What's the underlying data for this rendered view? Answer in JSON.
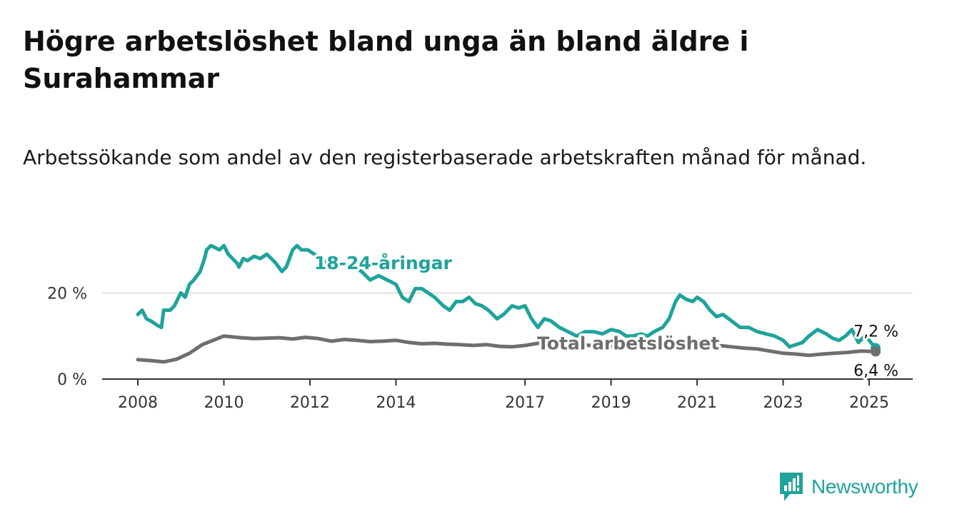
{
  "header": {
    "title": "Högre arbetslöshet bland unga än bland äldre i Surahammar",
    "subtitle": "Arbetssökande som andel av den registerbaserade arbetskraften månad för månad."
  },
  "brand": {
    "name": "Newsworthy",
    "icon": "newsworthy-logo-icon",
    "color": "#1fa39b"
  },
  "chart_data": {
    "type": "line",
    "ylim": [
      0,
      30
    ],
    "xlim": [
      2008,
      2025.25
    ],
    "yticks": [
      {
        "value": 0,
        "label": "0 %"
      },
      {
        "value": 20,
        "label": "20 %"
      }
    ],
    "xticks": [
      {
        "value": 2008,
        "label": "2008"
      },
      {
        "value": 2010,
        "label": "2010"
      },
      {
        "value": 2012,
        "label": "2012"
      },
      {
        "value": 2014,
        "label": "2014"
      },
      {
        "value": 2017,
        "label": "2017"
      },
      {
        "value": 2019,
        "label": "2019"
      },
      {
        "value": 2021,
        "label": "2021"
      },
      {
        "value": 2023,
        "label": "2023"
      },
      {
        "value": 2025,
        "label": "2025"
      }
    ],
    "grid": "horizontal",
    "series": [
      {
        "name": "18-24-åringar",
        "color": "#1fa39b",
        "end_label": "7,2 %",
        "x": [
          2008.0,
          2008.1,
          2008.2,
          2008.3,
          2008.45,
          2008.55,
          2008.6,
          2008.75,
          2008.85,
          2009.0,
          2009.1,
          2009.2,
          2009.3,
          2009.45,
          2009.55,
          2009.6,
          2009.7,
          2009.8,
          2009.9,
          2010.0,
          2010.1,
          2010.2,
          2010.3,
          2010.35,
          2010.45,
          2010.55,
          2010.7,
          2010.85,
          2011.0,
          2011.2,
          2011.35,
          2011.45,
          2011.6,
          2011.7,
          2011.8,
          2011.95,
          2012.1,
          2012.25,
          2012.4,
          2012.6,
          2012.8,
          2013.0,
          2013.2,
          2013.4,
          2013.6,
          2013.8,
          2014.0,
          2014.15,
          2014.3,
          2014.45,
          2014.6,
          2014.75,
          2014.9,
          2015.0,
          2015.1,
          2015.25,
          2015.4,
          2015.55,
          2015.7,
          2015.85,
          2016.0,
          2016.15,
          2016.35,
          2016.5,
          2016.7,
          2016.85,
          2017.0,
          2017.15,
          2017.3,
          2017.45,
          2017.6,
          2017.8,
          2018.0,
          2018.2,
          2018.4,
          2018.6,
          2018.8,
          2019.0,
          2019.2,
          2019.35,
          2019.5,
          2019.7,
          2019.85,
          2020.0,
          2020.2,
          2020.35,
          2020.5,
          2020.6,
          2020.75,
          2020.9,
          2021.0,
          2021.15,
          2021.3,
          2021.45,
          2021.6,
          2021.8,
          2022.0,
          2022.2,
          2022.4,
          2022.6,
          2022.8,
          2023.0,
          2023.15,
          2023.3,
          2023.45,
          2023.6,
          2023.8,
          2024.0,
          2024.15,
          2024.3,
          2024.45,
          2024.6,
          2024.75,
          2024.9,
          2025.0,
          2025.15
        ],
        "y": [
          15,
          16,
          14,
          13.5,
          12.5,
          12,
          16,
          16,
          17,
          20,
          19,
          22,
          23,
          25,
          28,
          30,
          31,
          30.5,
          30,
          31,
          29,
          28,
          27,
          26,
          28,
          27.5,
          28.5,
          28,
          29,
          27,
          25,
          26,
          30,
          31,
          30,
          30,
          29,
          28,
          27,
          26,
          27,
          26,
          25,
          23,
          24,
          23,
          22,
          19,
          18,
          21,
          21,
          20,
          19,
          18,
          17,
          16,
          18,
          18,
          19,
          17.5,
          17,
          16,
          14,
          15,
          17,
          16.5,
          17,
          14,
          12,
          14,
          13.5,
          12,
          11,
          10,
          11,
          11,
          10.5,
          11.5,
          11,
          10,
          10,
          10.5,
          10,
          11,
          12,
          14,
          18,
          19.5,
          18.5,
          18,
          19,
          18,
          16,
          14.5,
          15,
          13.5,
          12,
          12,
          11,
          10.5,
          10,
          9,
          7.5,
          8,
          8.5,
          10,
          11.5,
          10.5,
          9.5,
          9,
          10,
          11.5,
          8.5,
          10,
          9,
          7.2
        ]
      },
      {
        "name": "Total arbetslöshet",
        "color": "#6e6e6e",
        "end_label": "6,4 %",
        "x": [
          2008.0,
          2008.3,
          2008.6,
          2008.9,
          2009.2,
          2009.5,
          2009.8,
          2010.0,
          2010.2,
          2010.4,
          2010.7,
          2011.0,
          2011.3,
          2011.6,
          2011.9,
          2012.2,
          2012.5,
          2012.8,
          2013.1,
          2013.4,
          2013.7,
          2014.0,
          2014.3,
          2014.6,
          2014.9,
          2015.2,
          2015.5,
          2015.8,
          2016.1,
          2016.4,
          2016.7,
          2017.0,
          2017.3,
          2017.6,
          2017.9,
          2018.2,
          2018.5,
          2018.8,
          2019.1,
          2019.4,
          2019.7,
          2020.0,
          2020.3,
          2020.6,
          2020.9,
          2021.2,
          2021.5,
          2021.8,
          2022.1,
          2022.4,
          2022.7,
          2023.0,
          2023.3,
          2023.6,
          2023.9,
          2024.2,
          2024.5,
          2024.8,
          2025.15
        ],
        "y": [
          4.5,
          4.3,
          4,
          4.6,
          6,
          8,
          9.2,
          10,
          9.8,
          9.6,
          9.4,
          9.5,
          9.6,
          9.3,
          9.7,
          9.4,
          8.8,
          9.2,
          9.0,
          8.7,
          8.8,
          9.0,
          8.5,
          8.2,
          8.3,
          8.1,
          8.0,
          7.8,
          8.0,
          7.6,
          7.5,
          7.8,
          8.3,
          8.5,
          8.6,
          8.3,
          7.8,
          7.9,
          7.5,
          7.8,
          8.2,
          8.3,
          8.5,
          9.0,
          9.3,
          8.5,
          7.8,
          7.5,
          7.2,
          7.0,
          6.5,
          6.0,
          5.8,
          5.5,
          5.8,
          6.0,
          6.2,
          6.5,
          6.4
        ]
      }
    ],
    "annotations": [
      {
        "text": "18-24-åringar",
        "series": "18-24-åringar",
        "x": 2013.7,
        "y": 25.5
      },
      {
        "text": "Total arbetslöshet",
        "series": "Total arbetslöshet",
        "x": 2019.4,
        "y": 6.9
      }
    ]
  }
}
